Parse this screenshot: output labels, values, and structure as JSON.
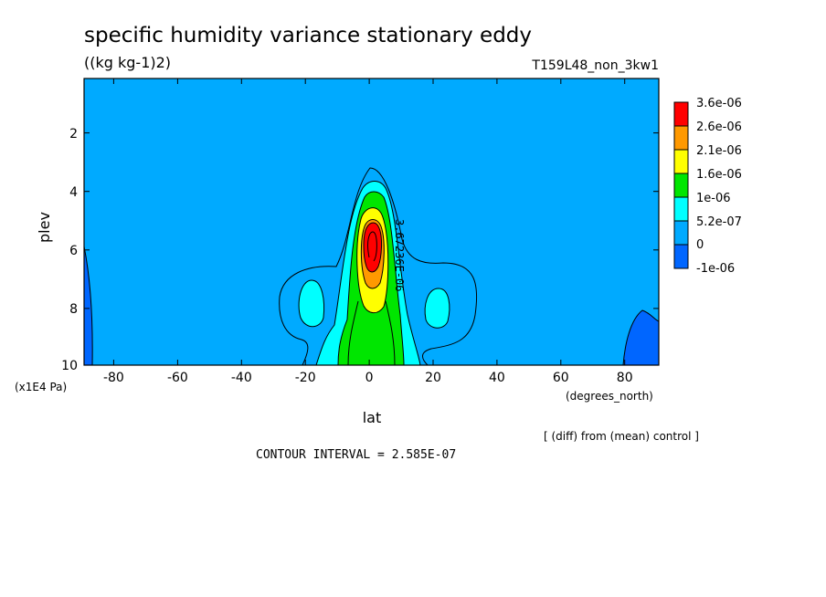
{
  "title": "specific humidity variance stationary eddy",
  "units": "((kg kg-1)2)",
  "run_label": "T159L48_non_3kw1",
  "chart_data": {
    "type": "heatmap",
    "xlabel": "lat",
    "x_units": "(degrees_north)",
    "x_ticks": [
      "-80",
      "-60",
      "-40",
      "-20",
      "0",
      "20",
      "40",
      "60",
      "80"
    ],
    "xlim": [
      -90,
      90
    ],
    "ylabel": "plev",
    "y_units": "(x1E4 Pa)",
    "y_ticks": [
      "2",
      "4",
      "6",
      "8",
      "10"
    ],
    "ylim": [
      10,
      0.2
    ],
    "colorbar": {
      "levels": [
        "3.6e-06",
        "2.6e-06",
        "2.1e-06",
        "1.6e-06",
        "1e-06",
        "5.2e-07",
        "0",
        "-1e-06"
      ],
      "colors": [
        "#ff0000",
        "#ff9900",
        "#ffff00",
        "#00e600",
        "#00ffff",
        "#00aaff",
        "#0066ff",
        "#0000ff"
      ]
    },
    "contour_label": "3.67236E-06",
    "contour_interval": "CONTOUR INTERVAL = 2.585E-07",
    "comparison_note": "[ (diff) from (mean) control ]",
    "features": {
      "peak_region": {
        "lat": 0,
        "plev": 5.8,
        "band": "3.6e-06"
      },
      "side_maxima": [
        {
          "lat": -21,
          "plev": 7.7
        },
        {
          "lat": 21,
          "plev": 7.9
        }
      ],
      "low_regions": [
        {
          "lat": -89,
          "plev": 9
        },
        {
          "lat": 85,
          "plev": 9.3
        }
      ]
    }
  }
}
